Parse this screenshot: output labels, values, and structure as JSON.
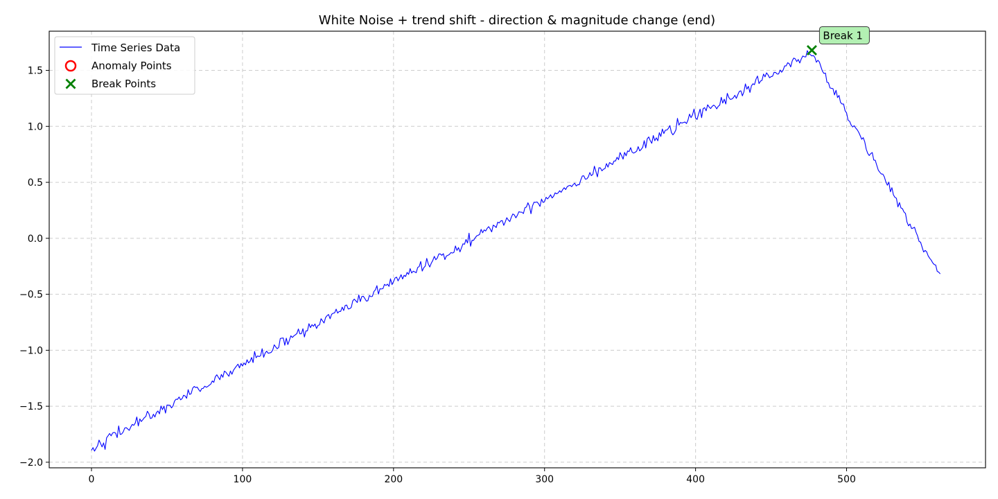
{
  "chart_data": {
    "type": "line",
    "title": "White Noise + trend shift - direction & magnitude change (end)",
    "xlabel": "",
    "ylabel": "",
    "xlim": [
      -28,
      592
    ],
    "ylim": [
      -2.05,
      1.85
    ],
    "x_ticks": [
      0,
      100,
      200,
      300,
      400,
      500
    ],
    "y_ticks": [
      -2.0,
      -1.5,
      -1.0,
      -0.5,
      0.0,
      0.5,
      1.0,
      1.5
    ],
    "x_tick_labels": [
      "0",
      "100",
      "200",
      "300",
      "400",
      "500"
    ],
    "y_tick_labels": [
      "−2.0",
      "−1.5",
      "−1.0",
      "−0.5",
      "0.0",
      "0.5",
      "1.0",
      "1.5"
    ],
    "grid": true,
    "legend_position": "top-left",
    "series": [
      {
        "name": "Time Series Data",
        "kind": "line",
        "color": "#0000ff",
        "length": 563,
        "trend_segments": [
          {
            "x_start": 0,
            "y_start": -1.87,
            "x_end": 477,
            "y_end": 1.66
          },
          {
            "x_start": 477,
            "y_start": 1.66,
            "x_end": 562,
            "y_end": -0.34
          }
        ],
        "noise_std": 0.025,
        "noise_seed": 42
      },
      {
        "name": "Anomaly Points",
        "kind": "scatter-ring",
        "color": "#ff0000",
        "points": []
      },
      {
        "name": "Break Points",
        "kind": "scatter-x",
        "color": "#008000",
        "points": [
          {
            "x": 477,
            "y": 1.68
          }
        ]
      }
    ],
    "annotations": [
      {
        "text": "Break 1",
        "x": 477,
        "y": 1.68,
        "box_color": "#b3f0b3"
      }
    ]
  }
}
